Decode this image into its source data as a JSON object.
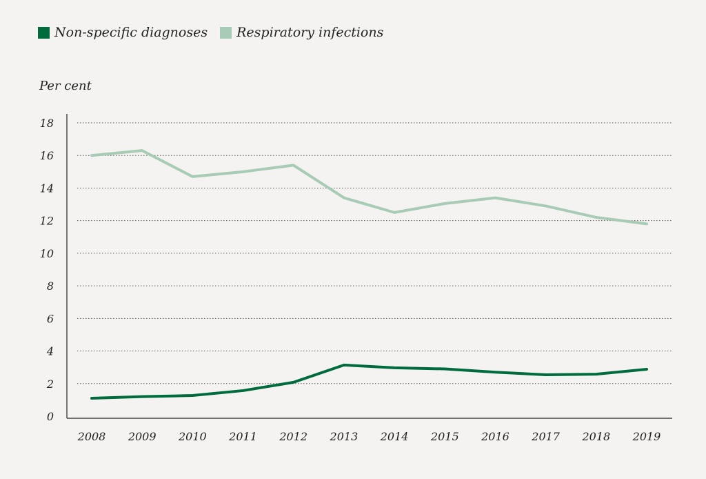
{
  "chart_data": {
    "type": "line",
    "title": "",
    "xlabel": "",
    "ylabel": "Per cent",
    "ylim": [
      0,
      18
    ],
    "yticks": [
      0,
      2,
      4,
      6,
      8,
      10,
      12,
      14,
      16,
      18
    ],
    "grid": true,
    "legend_position": "top-left",
    "x": [
      "2008",
      "2009",
      "2010",
      "2011",
      "2012",
      "2013",
      "2014",
      "2015",
      "2016",
      "2017",
      "2018",
      "2019"
    ],
    "series": [
      {
        "name": "Non-specific diagnoses",
        "color": "#006b3c",
        "values": [
          1.1,
          1.2,
          1.27,
          1.57,
          2.08,
          3.14,
          2.97,
          2.9,
          2.7,
          2.54,
          2.58,
          2.88
        ]
      },
      {
        "name": "Respiratory infections",
        "color": "#a8cbb5",
        "values": [
          16.0,
          16.3,
          14.7,
          15.0,
          15.4,
          13.4,
          12.5,
          13.05,
          13.4,
          12.9,
          12.2,
          11.8
        ]
      }
    ]
  }
}
